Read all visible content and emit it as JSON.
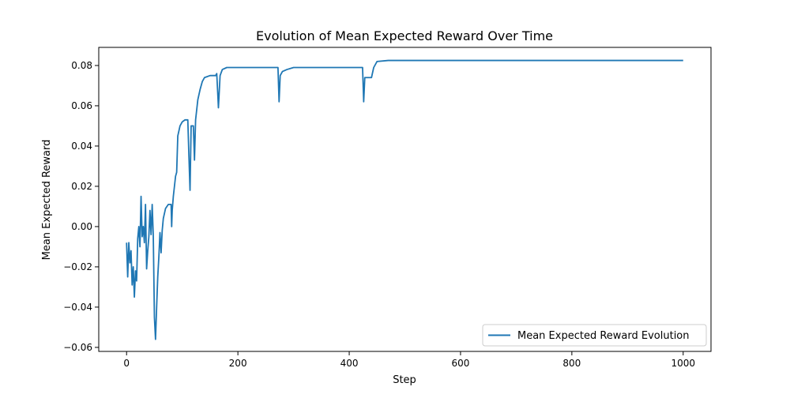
{
  "chart_data": {
    "type": "line",
    "title": "Evolution of Mean Expected Reward Over Time",
    "xlabel": "Step",
    "ylabel": "Mean Expected Reward",
    "xlim": [
      -50,
      1050
    ],
    "ylim": [
      -0.062,
      0.089
    ],
    "xticks": [
      0,
      200,
      400,
      600,
      800,
      1000
    ],
    "xtick_labels": [
      "0",
      "200",
      "400",
      "600",
      "800",
      "1000"
    ],
    "yticks": [
      -0.06,
      -0.04,
      -0.02,
      0.0,
      0.02,
      0.04,
      0.06,
      0.08
    ],
    "ytick_labels": [
      "−0.06",
      "−0.04",
      "−0.02",
      "0.00",
      "0.02",
      "0.04",
      "0.06",
      "0.08"
    ],
    "grid": false,
    "legend_position": "lower-right",
    "series": [
      {
        "name": "Mean Expected Reward Evolution",
        "color": "#1f77b4",
        "points": [
          [
            0,
            -0.008
          ],
          [
            2,
            -0.025
          ],
          [
            4,
            -0.008
          ],
          [
            6,
            -0.018
          ],
          [
            8,
            -0.012
          ],
          [
            10,
            -0.029
          ],
          [
            12,
            -0.02
          ],
          [
            14,
            -0.035
          ],
          [
            16,
            -0.022
          ],
          [
            18,
            -0.027
          ],
          [
            20,
            -0.006
          ],
          [
            22,
            0.0
          ],
          [
            24,
            -0.01
          ],
          [
            26,
            0.015
          ],
          [
            28,
            -0.005
          ],
          [
            30,
            0.0
          ],
          [
            32,
            -0.008
          ],
          [
            34,
            0.011
          ],
          [
            36,
            -0.021
          ],
          [
            38,
            -0.012
          ],
          [
            40,
            -0.005
          ],
          [
            42,
            0.008
          ],
          [
            44,
            -0.004
          ],
          [
            46,
            0.011
          ],
          [
            48,
            -0.005
          ],
          [
            50,
            -0.045
          ],
          [
            52,
            -0.056
          ],
          [
            54,
            -0.04
          ],
          [
            56,
            -0.025
          ],
          [
            58,
            -0.015
          ],
          [
            60,
            -0.003
          ],
          [
            62,
            -0.013
          ],
          [
            64,
            -0.002
          ],
          [
            66,
            0.004
          ],
          [
            70,
            0.009
          ],
          [
            75,
            0.011
          ],
          [
            80,
            0.011
          ],
          [
            81,
            0.0
          ],
          [
            82,
            0.008
          ],
          [
            84,
            0.015
          ],
          [
            86,
            0.02
          ],
          [
            88,
            0.025
          ],
          [
            90,
            0.027
          ],
          [
            92,
            0.045
          ],
          [
            96,
            0.05
          ],
          [
            100,
            0.052
          ],
          [
            105,
            0.053
          ],
          [
            110,
            0.053
          ],
          [
            112,
            0.035
          ],
          [
            114,
            0.018
          ],
          [
            116,
            0.05
          ],
          [
            120,
            0.05
          ],
          [
            122,
            0.033
          ],
          [
            124,
            0.053
          ],
          [
            128,
            0.063
          ],
          [
            132,
            0.068
          ],
          [
            136,
            0.072
          ],
          [
            140,
            0.074
          ],
          [
            150,
            0.075
          ],
          [
            160,
            0.075
          ],
          [
            162,
            0.076
          ],
          [
            164,
            0.065
          ],
          [
            165,
            0.059
          ],
          [
            168,
            0.075
          ],
          [
            172,
            0.078
          ],
          [
            180,
            0.079
          ],
          [
            200,
            0.079
          ],
          [
            240,
            0.079
          ],
          [
            272,
            0.079
          ],
          [
            274,
            0.062
          ],
          [
            276,
            0.075
          ],
          [
            280,
            0.077
          ],
          [
            288,
            0.078
          ],
          [
            300,
            0.079
          ],
          [
            350,
            0.079
          ],
          [
            400,
            0.079
          ],
          [
            424,
            0.079
          ],
          [
            426,
            0.062
          ],
          [
            428,
            0.074
          ],
          [
            440,
            0.074
          ],
          [
            444,
            0.079
          ],
          [
            450,
            0.082
          ],
          [
            470,
            0.0825
          ],
          [
            500,
            0.0825
          ],
          [
            600,
            0.0825
          ],
          [
            700,
            0.0825
          ],
          [
            800,
            0.0825
          ],
          [
            900,
            0.0825
          ],
          [
            1000,
            0.0825
          ]
        ]
      }
    ]
  }
}
